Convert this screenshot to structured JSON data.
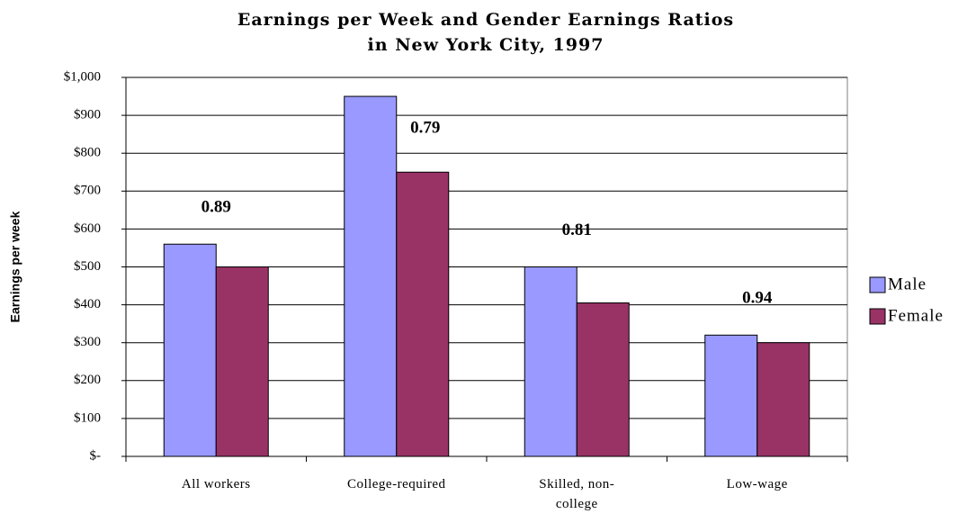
{
  "chart_data": {
    "type": "bar",
    "title": "Earnings per Week and Gender Earnings Ratios in New York City, 1997",
    "ylabel": "Earnings per week",
    "categories": [
      "All workers",
      "College-required",
      "Skilled, non-college",
      "Low-wage"
    ],
    "series": [
      {
        "name": "Male",
        "color": "#9999ff",
        "values": [
          560,
          950,
          500,
          320
        ]
      },
      {
        "name": "Female",
        "color": "#993366",
        "values": [
          500,
          750,
          405,
          300
        ]
      }
    ],
    "annotations": [
      "0.89",
      "0.79",
      "0.81",
      "0.94"
    ],
    "ylim": [
      0,
      1000
    ],
    "yticks": [
      {
        "value": 0,
        "label": "$-"
      },
      {
        "value": 100,
        "label": "$100"
      },
      {
        "value": 200,
        "label": "$200"
      },
      {
        "value": 300,
        "label": "$300"
      },
      {
        "value": 400,
        "label": "$400"
      },
      {
        "value": 500,
        "label": "$500"
      },
      {
        "value": 600,
        "label": "$600"
      },
      {
        "value": 700,
        "label": "$700"
      },
      {
        "value": 800,
        "label": "$800"
      },
      {
        "value": 900,
        "label": "$900"
      },
      {
        "value": 1000,
        "label": "$1,000"
      }
    ],
    "grid": true,
    "legend": "right"
  }
}
